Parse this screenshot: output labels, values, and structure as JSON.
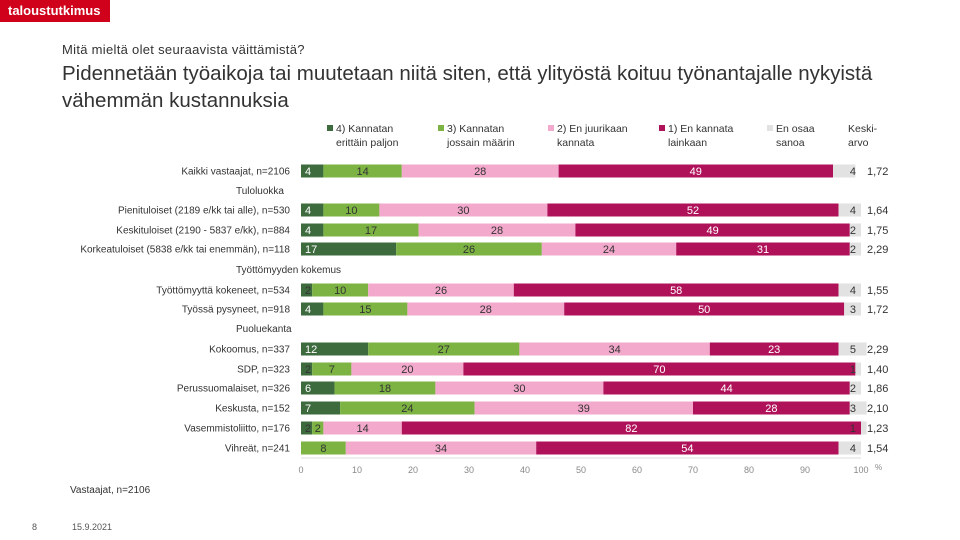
{
  "brand": "taloustutkimus",
  "question": "Mitä mieltä olet seuraavista väittämistä?",
  "title": "Pidennetään työaikoja tai muutetaan niitä siten, että ylityöstä koituu työnantajalle nykyistä vähemmän kustannuksia",
  "footnote": "Vastaajat, n=2106",
  "page_number": "8",
  "date": "15.9.2021",
  "chart_data": {
    "type": "bar",
    "orientation": "horizontal",
    "stacked": true,
    "xlim": [
      0,
      100
    ],
    "x_ticks": [
      "0",
      "10",
      "20",
      "30",
      "40",
      "50",
      "60",
      "70",
      "80",
      "90",
      "100"
    ],
    "x_unit": "%",
    "mean_header": "Keski-\narvo",
    "series": [
      {
        "name": "4) Kannatan\nerittäin paljon",
        "color": "#3e6b3e",
        "text_color": "#ffffff"
      },
      {
        "name": "3) Kannatan\njossain määrin",
        "color": "#7cb342",
        "text_color": "#333333"
      },
      {
        "name": "2) En juurikaan\nkannata",
        "color": "#f3a9cc",
        "text_color": "#333333"
      },
      {
        "name": "1) En kannata\nlainkaan",
        "color": "#b0125a",
        "text_color": "#ffffff"
      },
      {
        "name": "En osaa\nsanoa",
        "color": "#e2e2e2",
        "text_color": "#333333"
      }
    ],
    "rows": [
      {
        "kind": "bar",
        "label": "Kaikki vastaajat, n=2106",
        "values": [
          4,
          14,
          28,
          49,
          4
        ],
        "labels": [
          "4",
          "14",
          "28",
          "49",
          "4"
        ],
        "mean": "1,72"
      },
      {
        "kind": "header",
        "label": "Tuloluokka"
      },
      {
        "kind": "bar",
        "label": "Pienituloiset (2189 e/kk tai alle), n=530",
        "values": [
          4,
          10,
          30,
          52,
          4
        ],
        "labels": [
          "4",
          "10",
          "30",
          "52",
          "4"
        ],
        "mean": "1,64"
      },
      {
        "kind": "bar",
        "label": "Keskituloiset (2190 - 5837 e/kk), n=884",
        "values": [
          4,
          17,
          28,
          49,
          2
        ],
        "labels": [
          "4",
          "17",
          "28",
          "49",
          "2"
        ],
        "mean": "1,75"
      },
      {
        "kind": "bar",
        "label": "Korkeatuloiset (5838 e/kk tai enemmän), n=118",
        "values": [
          17,
          26,
          24,
          31,
          2
        ],
        "labels": [
          "17",
          "26",
          "24",
          "31",
          "2"
        ],
        "mean": "2,29"
      },
      {
        "kind": "header",
        "label": "Työttömyyden kokemus"
      },
      {
        "kind": "bar",
        "label": "Työttömyyttä kokeneet, n=534",
        "values": [
          2,
          10,
          26,
          58,
          4
        ],
        "labels": [
          "2",
          "10",
          "26",
          "58",
          "4"
        ],
        "mean": "1,55"
      },
      {
        "kind": "bar",
        "label": "Työssä pysyneet, n=918",
        "values": [
          4,
          15,
          28,
          50,
          3
        ],
        "labels": [
          "4",
          "15",
          "28",
          "50",
          "3"
        ],
        "mean": "1,72"
      },
      {
        "kind": "header",
        "label": "Puoluekanta"
      },
      {
        "kind": "bar",
        "label": "Kokoomus, n=337",
        "values": [
          12,
          27,
          34,
          23,
          5
        ],
        "labels": [
          "12",
          "27",
          "34",
          "23",
          "5"
        ],
        "mean": "2,29"
      },
      {
        "kind": "bar",
        "label": "SDP, n=323",
        "values": [
          2,
          7,
          20,
          70,
          1
        ],
        "labels": [
          "2",
          "7",
          "20",
          "70",
          "1"
        ],
        "mean": "1,40"
      },
      {
        "kind": "bar",
        "label": "Perussuomalaiset, n=326",
        "values": [
          6,
          18,
          30,
          44,
          2
        ],
        "labels": [
          "6",
          "18",
          "30",
          "44",
          "2"
        ],
        "mean": "1,86"
      },
      {
        "kind": "bar",
        "label": "Keskusta, n=152",
        "values": [
          7,
          24,
          39,
          28,
          3
        ],
        "labels": [
          "7",
          "24",
          "39",
          "28",
          "3"
        ],
        "mean": "2,10"
      },
      {
        "kind": "bar",
        "label": "Vasemmistoliitto, n=176",
        "values": [
          2,
          2,
          14,
          82,
          1
        ],
        "labels": [
          "2",
          "2",
          "14",
          "82",
          "1"
        ],
        "mean": "1,23"
      },
      {
        "kind": "bar",
        "label": "Vihreät, n=241",
        "values": [
          0,
          8,
          34,
          54,
          4
        ],
        "labels": [
          "0",
          "8",
          "34",
          "54",
          "4"
        ],
        "mean": "1,54"
      }
    ]
  }
}
